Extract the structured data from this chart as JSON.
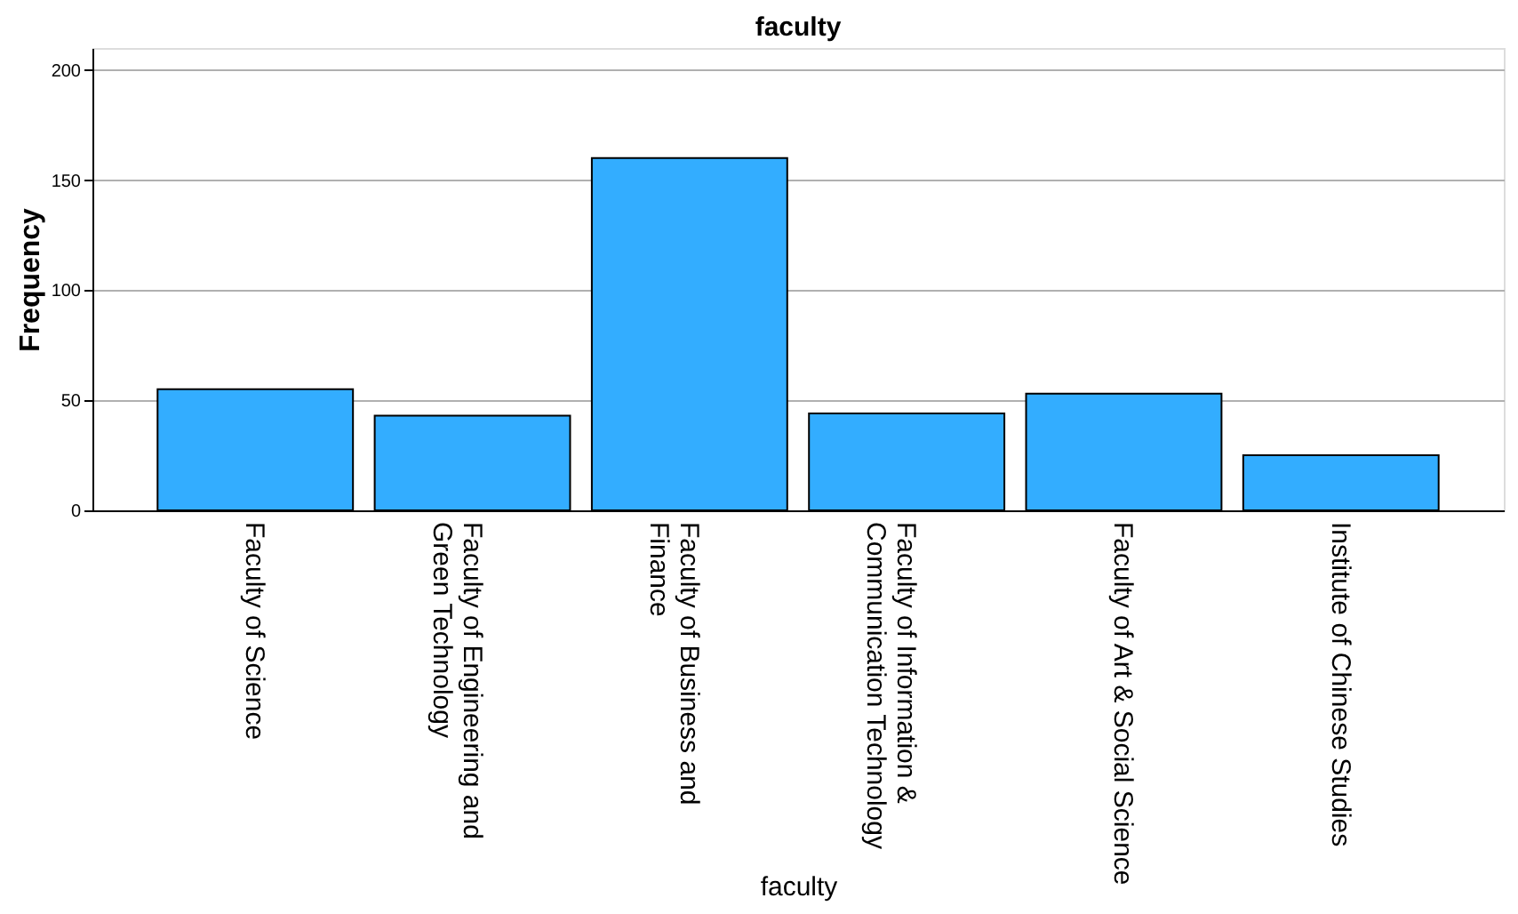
{
  "chart_data": {
    "type": "bar",
    "title": "faculty",
    "xlabel": "faculty",
    "ylabel": "Frequency",
    "categories": [
      "Faculty of Science",
      "Faculty of Engineering and\nGreen Technology",
      "Faculty of Business and\nFinance",
      "Faculty of Information &\nCommunication Technology",
      "Faculty of Art & Social Science",
      "Institute of Chinese Studies"
    ],
    "values": [
      55,
      43,
      160,
      44,
      53,
      25
    ],
    "color": "#33adff",
    "ylim": [
      0,
      210
    ],
    "yticks": [
      0,
      50,
      100,
      150,
      200
    ],
    "grid": "y"
  }
}
